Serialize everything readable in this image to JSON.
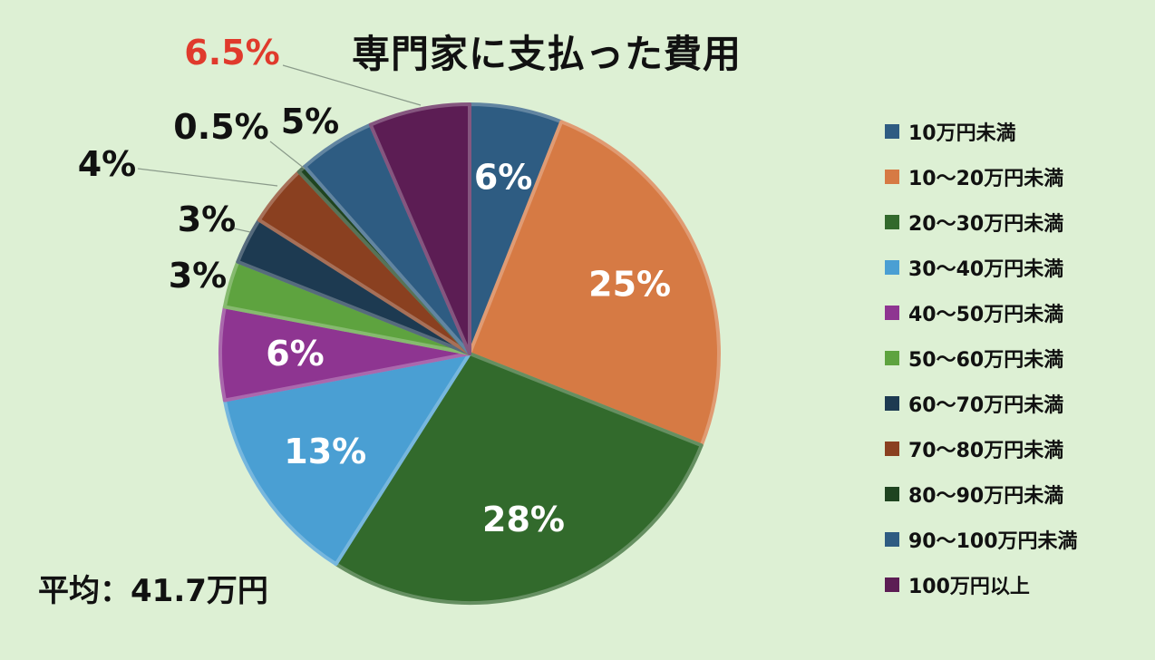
{
  "chart_data": {
    "type": "pie",
    "title": "専門家に支払った費用",
    "note": "平均：41.7万円",
    "legend_position": "right",
    "start_angle": 0,
    "direction": "clockwise",
    "slices": [
      {
        "label": "10万円未満",
        "value": 6,
        "display": "6%",
        "color": "#2e5c82",
        "label_style": "inside"
      },
      {
        "label": "10〜20万円未満",
        "value": 25,
        "display": "25%",
        "color": "#d67a44",
        "label_style": "inside"
      },
      {
        "label": "20〜30万円未満",
        "value": 28,
        "display": "28%",
        "color": "#326a2c",
        "label_style": "inside"
      },
      {
        "label": "30〜40万円未満",
        "value": 13,
        "display": "13%",
        "color": "#4a9fd3",
        "label_style": "inside"
      },
      {
        "label": "40〜50万円未満",
        "value": 6,
        "display": "6%",
        "color": "#8e3591",
        "label_style": "inside"
      },
      {
        "label": "50〜60万円未満",
        "value": 3,
        "display": "3%",
        "color": "#5ea33f",
        "label_style": "outside"
      },
      {
        "label": "60〜70万円未満",
        "value": 3,
        "display": "3%",
        "color": "#1d3a51",
        "label_style": "outside"
      },
      {
        "label": "70〜80万円未満",
        "value": 4,
        "display": "4%",
        "color": "#8a4020",
        "label_style": "outside"
      },
      {
        "label": "80〜90万円未満",
        "value": 0.5,
        "display": "0.5%",
        "color": "#1f4420",
        "label_style": "outside"
      },
      {
        "label": "90〜100万円未満",
        "value": 5,
        "display": "5%",
        "color": "#2e5c82",
        "label_style": "outside"
      },
      {
        "label": "100万円以上",
        "value": 6.5,
        "display": "6.5%",
        "color": "#5c1d54",
        "label_style": "outside",
        "label_color": "#e03a2c"
      }
    ]
  }
}
